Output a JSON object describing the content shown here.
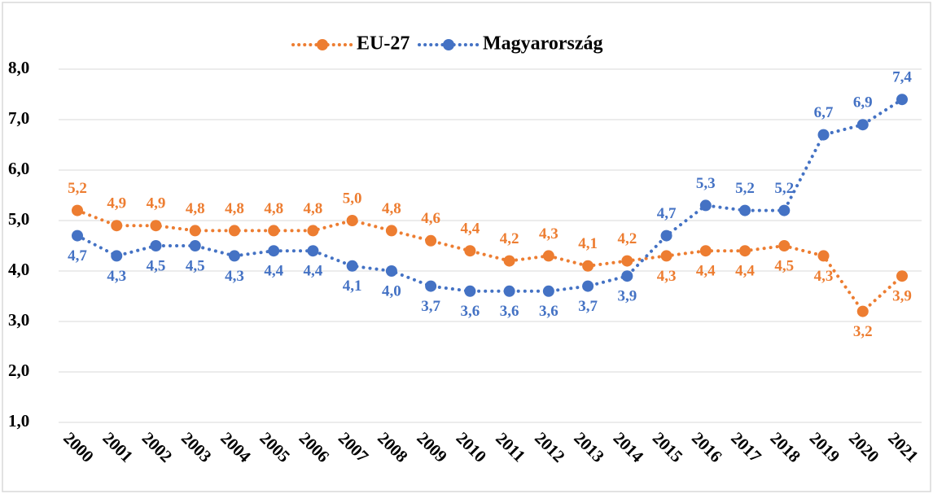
{
  "chart_data": {
    "type": "line",
    "categories": [
      "2000",
      "2001",
      "2002",
      "2003",
      "2004",
      "2005",
      "2006",
      "2007",
      "2008",
      "2009",
      "2010",
      "2011",
      "2012",
      "2013",
      "2014",
      "2015",
      "2016",
      "2017",
      "2018",
      "2019",
      "2020",
      "2021"
    ],
    "series": [
      {
        "name": "EU-27",
        "color": "#ed7d31",
        "values": [
          5.2,
          4.9,
          4.9,
          4.8,
          4.8,
          4.8,
          4.8,
          5.0,
          4.8,
          4.6,
          4.4,
          4.2,
          4.3,
          4.1,
          4.2,
          4.3,
          4.4,
          4.4,
          4.5,
          4.3,
          3.2,
          3.9
        ],
        "value_labels": [
          "5,2",
          "4,9",
          "4,9",
          "4,8",
          "4,8",
          "4,8",
          "4,8",
          "5,0",
          "4,8",
          "4,6",
          "4,4",
          "4,2",
          "4,3",
          "4,1",
          "4,2",
          "4,3",
          "4,4",
          "4,4",
          "4,5",
          "4,3",
          "3,2",
          "3,9"
        ]
      },
      {
        "name": "Magyarország",
        "color": "#4472c4",
        "values": [
          4.7,
          4.3,
          4.5,
          4.5,
          4.3,
          4.4,
          4.4,
          4.1,
          4.0,
          3.7,
          3.6,
          3.6,
          3.6,
          3.7,
          3.9,
          4.7,
          5.3,
          5.2,
          5.2,
          6.7,
          6.9,
          7.4
        ],
        "value_labels": [
          "4,7",
          "4,3",
          "4,5",
          "4,5",
          "4,3",
          "4,4",
          "4,4",
          "4,1",
          "4,0",
          "3,7",
          "3,6",
          "3,6",
          "3,6",
          "3,7",
          "3,9",
          "4,7",
          "5,3",
          "5,2",
          "5,2",
          "6,7",
          "6,9",
          "7,4"
        ]
      }
    ],
    "ylim": [
      1,
      8
    ],
    "yticks": [
      {
        "value": 1,
        "label": "1,0"
      },
      {
        "value": 2,
        "label": "2,0"
      },
      {
        "value": 3,
        "label": "3,0"
      },
      {
        "value": 4,
        "label": "4,0"
      },
      {
        "value": 5,
        "label": "5,0"
      },
      {
        "value": 6,
        "label": "6,0"
      },
      {
        "value": 7,
        "label": "7,0"
      },
      {
        "value": 8,
        "label": "8,0"
      }
    ],
    "grid": true,
    "legend": "top"
  }
}
